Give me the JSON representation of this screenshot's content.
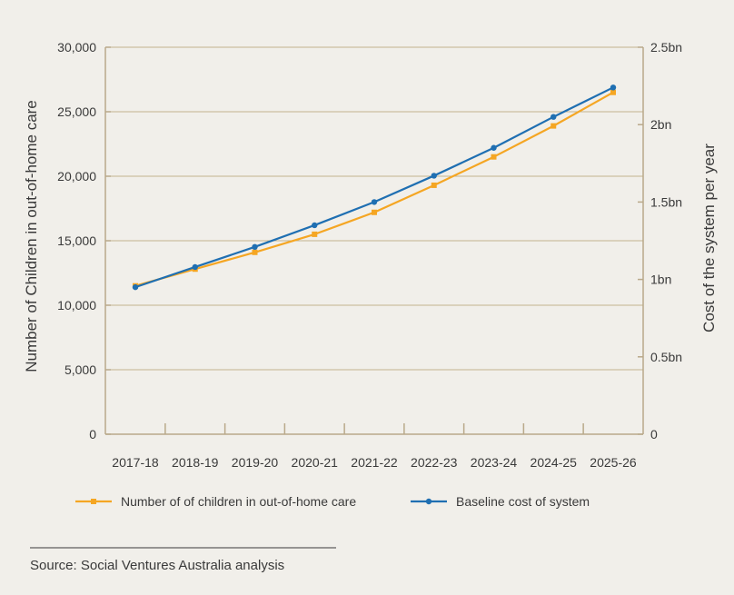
{
  "chart_data": {
    "type": "line",
    "categories": [
      "2017-18",
      "2018-19",
      "2019-20",
      "2020-21",
      "2021-22",
      "2022-23",
      "2023-24",
      "2024-25",
      "2025-26"
    ],
    "y_left": {
      "label": "Number of Children in out-of-home care",
      "ylim": [
        0,
        30000
      ],
      "ticks": [
        0,
        5000,
        10000,
        15000,
        20000,
        25000,
        30000
      ],
      "tick_labels": [
        "0",
        "5,000",
        "10,000",
        "15,000",
        "20,000",
        "25,000",
        "30,000"
      ]
    },
    "y_right": {
      "label": "Cost of the system per year",
      "ylim": [
        0,
        2.5
      ],
      "ticks": [
        0,
        0.5,
        1,
        1.5,
        2,
        2.5
      ],
      "tick_labels": [
        "0",
        "0.5bn",
        "1bn",
        "1.5bn",
        "2bn",
        "2.5bn"
      ]
    },
    "series": [
      {
        "name": "Number of of children in out-of-home care",
        "axis": "left",
        "color": "#f5a623",
        "marker": "square",
        "values": [
          11500,
          12800,
          14100,
          15500,
          17200,
          19300,
          21500,
          23900,
          26500
        ]
      },
      {
        "name": "Baseline cost of system",
        "axis": "right",
        "color": "#1f6fb2",
        "marker": "circle",
        "values": [
          0.95,
          1.08,
          1.21,
          1.35,
          1.5,
          1.67,
          1.85,
          2.05,
          2.24
        ]
      }
    ],
    "gridlines": "horizontal",
    "legend_position": "bottom"
  },
  "source": "Source: Social Ventures Australia analysis"
}
